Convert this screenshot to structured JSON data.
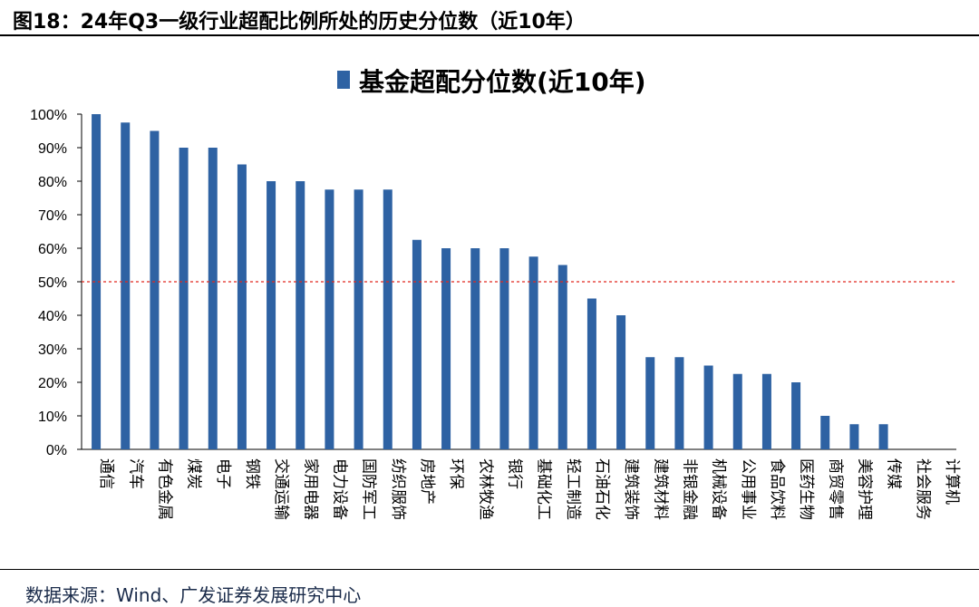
{
  "header": {
    "title": "图18：24年Q3一级行业超配比例所处的历史分位数（近10年）"
  },
  "footer": {
    "source": "数据来源：Wind、广发证券发展研究中心"
  },
  "colors": {
    "bar": "#2e62a3",
    "reference_line": "#e0281e",
    "axis": "#000000"
  },
  "chart_data": {
    "type": "bar",
    "title": "",
    "xlabel": "",
    "ylabel": "",
    "ylim": [
      0,
      100
    ],
    "yticks": [
      "0%",
      "10%",
      "20%",
      "30%",
      "40%",
      "50%",
      "60%",
      "70%",
      "80%",
      "90%",
      "100%"
    ],
    "legend": {
      "position": "top-center",
      "entries": [
        "基金超配分位数(近10年)"
      ]
    },
    "reference_line": {
      "value": 50,
      "style": "dashed"
    },
    "grid": false,
    "categories": [
      "通信",
      "汽车",
      "有色金属",
      "煤炭",
      "电子",
      "钢铁",
      "交通运输",
      "家用电器",
      "电力设备",
      "国防军工",
      "纺织服饰",
      "房地产",
      "环保",
      "农林牧渔",
      "银行",
      "基础化工",
      "轻工制造",
      "石油石化",
      "建筑装饰",
      "建筑材料",
      "非银金融",
      "机械设备",
      "公用事业",
      "食品饮料",
      "医药生物",
      "商贸零售",
      "美容护理",
      "传媒",
      "社会服务",
      "计算机"
    ],
    "series": [
      {
        "name": "基金超配分位数(近10年)",
        "values": [
          100,
          97.5,
          95,
          90,
          90,
          85,
          80,
          80,
          77.5,
          77.5,
          77.5,
          62.5,
          60,
          60,
          60,
          57.5,
          55,
          45,
          40,
          27.5,
          27.5,
          25,
          22.5,
          22.5,
          20,
          10,
          7.5,
          7.5,
          0,
          0
        ]
      }
    ]
  }
}
